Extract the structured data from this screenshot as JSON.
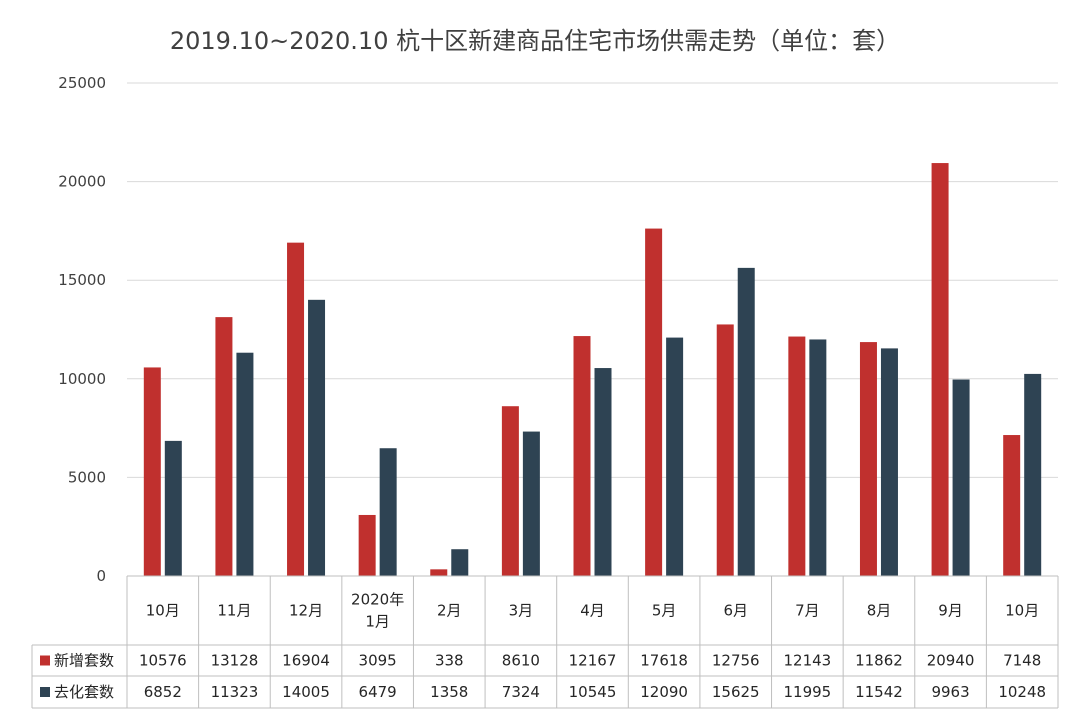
{
  "chart_data": {
    "type": "bar",
    "title": "2019.10~2020.10 杭十区新建商品住宅市场供需走势（单位：套）",
    "categories": [
      [
        "10月"
      ],
      [
        "11月"
      ],
      [
        "12月"
      ],
      [
        "2020年",
        "1月"
      ],
      [
        "2月"
      ],
      [
        "3月"
      ],
      [
        "4月"
      ],
      [
        "5月"
      ],
      [
        "6月"
      ],
      [
        "7月"
      ],
      [
        "8月"
      ],
      [
        "9月"
      ],
      [
        "10月"
      ]
    ],
    "series": [
      {
        "name": "新增套数",
        "color": "#c0302e",
        "values": [
          10576,
          13128,
          16904,
          3095,
          338,
          8610,
          12167,
          17618,
          12756,
          12143,
          11862,
          20940,
          7148
        ]
      },
      {
        "name": "去化套数",
        "color": "#2e4353",
        "values": [
          6852,
          11323,
          14005,
          6479,
          1358,
          7324,
          10545,
          12090,
          15625,
          11995,
          11542,
          9963,
          10248
        ]
      }
    ],
    "ylim": [
      0,
      25000
    ],
    "yticks": [
      0,
      5000,
      10000,
      15000,
      20000,
      25000
    ],
    "grid": true,
    "legend": "data table"
  }
}
